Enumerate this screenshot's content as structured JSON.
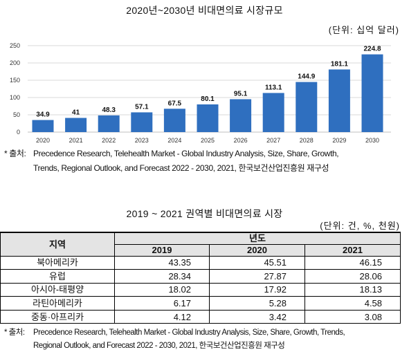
{
  "chart_data": [
    {
      "type": "bar",
      "title": "2020년~2030년 비대면의료 시장규모",
      "unit": "(단위: 십억 달러)",
      "categories": [
        "2020",
        "2021",
        "2022",
        "2023",
        "2024",
        "2025",
        "2026",
        "2027",
        "2028",
        "2029",
        "2030"
      ],
      "values": [
        34.9,
        41,
        48.3,
        57.1,
        67.5,
        80.1,
        95.1,
        113.1,
        144.9,
        181.1,
        224.8
      ],
      "ylim": [
        0,
        250
      ],
      "yticks": [
        0,
        50,
        100,
        150,
        200,
        250
      ],
      "grid": true,
      "legend": "none",
      "data_labels": true
    },
    {
      "type": "table",
      "title": "2019 ~ 2021 권역별 비대면의료 시장",
      "unit": "(단위: 건, %, 천원)",
      "columns": {
        "region": "지역",
        "group": "년도",
        "years": [
          "2019",
          "2020",
          "2021"
        ]
      },
      "rows": [
        {
          "region": "북아메리카",
          "values": [
            43.35,
            45.51,
            46.15
          ]
        },
        {
          "region": "유럽",
          "values": [
            28.34,
            27.87,
            28.06
          ]
        },
        {
          "region": "아시아-태평양",
          "values": [
            18.02,
            17.92,
            18.13
          ]
        },
        {
          "region": "라틴아메리카",
          "values": [
            6.17,
            5.28,
            4.58
          ]
        },
        {
          "region": "중동·아프리카",
          "values": [
            4.12,
            3.42,
            3.08
          ]
        }
      ]
    }
  ],
  "notes": [
    {
      "marker": "* 출처:",
      "lines": [
        "Precedence Research, Telehealth Market - Global Industry Analysis, Size, Share, Growth,",
        "Trends, Regional Outlook, and Forecast 2022 - 2030, 2021, 한국보건산업진흥원 재구성"
      ]
    },
    {
      "marker": "* 출처:",
      "lines": [
        "Precedence Research, Telehealth Market - Global Industry Analysis, Size, Share, Growth, Trends,",
        "Regional Outlook, and Forecast 2022 - 2030, 2021, 한국보건산업진흥원 재구성"
      ]
    }
  ],
  "colors": {
    "bar": "#2f6fbf",
    "grid": "#d9d9d9",
    "axis": "#bfbfbf",
    "table_header_bg": "#e4e4e4"
  }
}
